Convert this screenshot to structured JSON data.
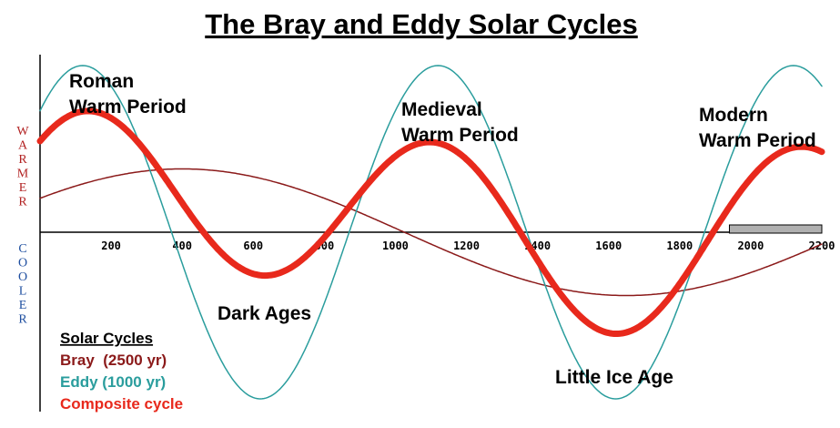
{
  "chart_data": {
    "type": "line",
    "title": "The Bray and Eddy Solar Cycles",
    "xlim": [
      0,
      2200
    ],
    "x_ticks": [
      200,
      400,
      600,
      800,
      1000,
      1200,
      1400,
      1600,
      1800,
      2000,
      2200
    ],
    "y_axis_words": {
      "warmer": "WARMER",
      "cooler": "COOLER"
    },
    "series": [
      {
        "name": "Bray (2500 yr)",
        "color": "#8b1a1a",
        "period": 2500,
        "amplitude": 0.38,
        "peak_x": 400,
        "points": {
          "x": [
            0,
            200,
            400,
            600,
            800,
            1000,
            1200,
            1400,
            1600,
            1800,
            2000,
            2200
          ],
          "y": [
            0.22,
            0.35,
            0.38,
            0.32,
            0.12,
            -0.12,
            -0.32,
            -0.38,
            -0.35,
            -0.22,
            -0.01,
            0.2
          ]
        }
      },
      {
        "name": "Eddy (1000 yr)",
        "color": "#2a9d9d",
        "period": 1000,
        "amplitude": 1.0,
        "peak_x": 120,
        "points": {
          "x": [
            0,
            100,
            200,
            300,
            400,
            500,
            600,
            700,
            800,
            900,
            1000,
            1100,
            1200,
            1300,
            1400,
            1500,
            1600,
            1700,
            1800,
            1900,
            2000,
            2100,
            2200
          ],
          "y": [
            0.73,
            0.99,
            0.88,
            0.43,
            -0.18,
            -0.73,
            -0.99,
            -0.88,
            -0.43,
            0.18,
            0.73,
            0.99,
            0.88,
            0.43,
            -0.18,
            -0.73,
            -0.99,
            -0.88,
            -0.43,
            0.18,
            0.73,
            0.99,
            0.88
          ]
        }
      },
      {
        "name": "Composite cycle",
        "color": "#e8291c",
        "points": {
          "x": [
            0,
            100,
            200,
            300,
            400,
            500,
            600,
            700,
            800,
            900,
            1000,
            1100,
            1200,
            1300,
            1400,
            1500,
            1600,
            1700,
            1800,
            1900,
            2000,
            2100,
            2200
          ],
          "y": [
            0.41,
            0.6,
            0.61,
            0.41,
            0.1,
            -0.2,
            -0.35,
            -0.35,
            -0.23,
            0.04,
            0.3,
            0.44,
            0.4,
            0.17,
            -0.15,
            -0.41,
            -0.55,
            -0.53,
            -0.34,
            -0.01,
            0.33,
            0.57,
            0.57
          ]
        }
      }
    ],
    "annotations": [
      {
        "lines": [
          "Roman",
          "Warm Period"
        ]
      },
      {
        "lines": [
          "Medieval",
          "Warm Period"
        ]
      },
      {
        "lines": [
          "Modern",
          "Warm Period"
        ]
      },
      {
        "lines": [
          "Dark Ages"
        ]
      },
      {
        "lines": [
          "Little Ice Age"
        ]
      }
    ],
    "legend": {
      "title": "Solar Cycles",
      "placement": "bottom-left",
      "entries": [
        {
          "label": "Bray  (2500 yr)",
          "color": "#8b1a1a"
        },
        {
          "label": "Eddy (1000 yr)",
          "color": "#2a9d9d"
        },
        {
          "label": "Composite cycle",
          "color": "#e8291c"
        }
      ]
    },
    "highlight_bar": {
      "x_start": 1940,
      "x_end": 2200,
      "color": "#b0b0b0"
    },
    "grid": false
  }
}
